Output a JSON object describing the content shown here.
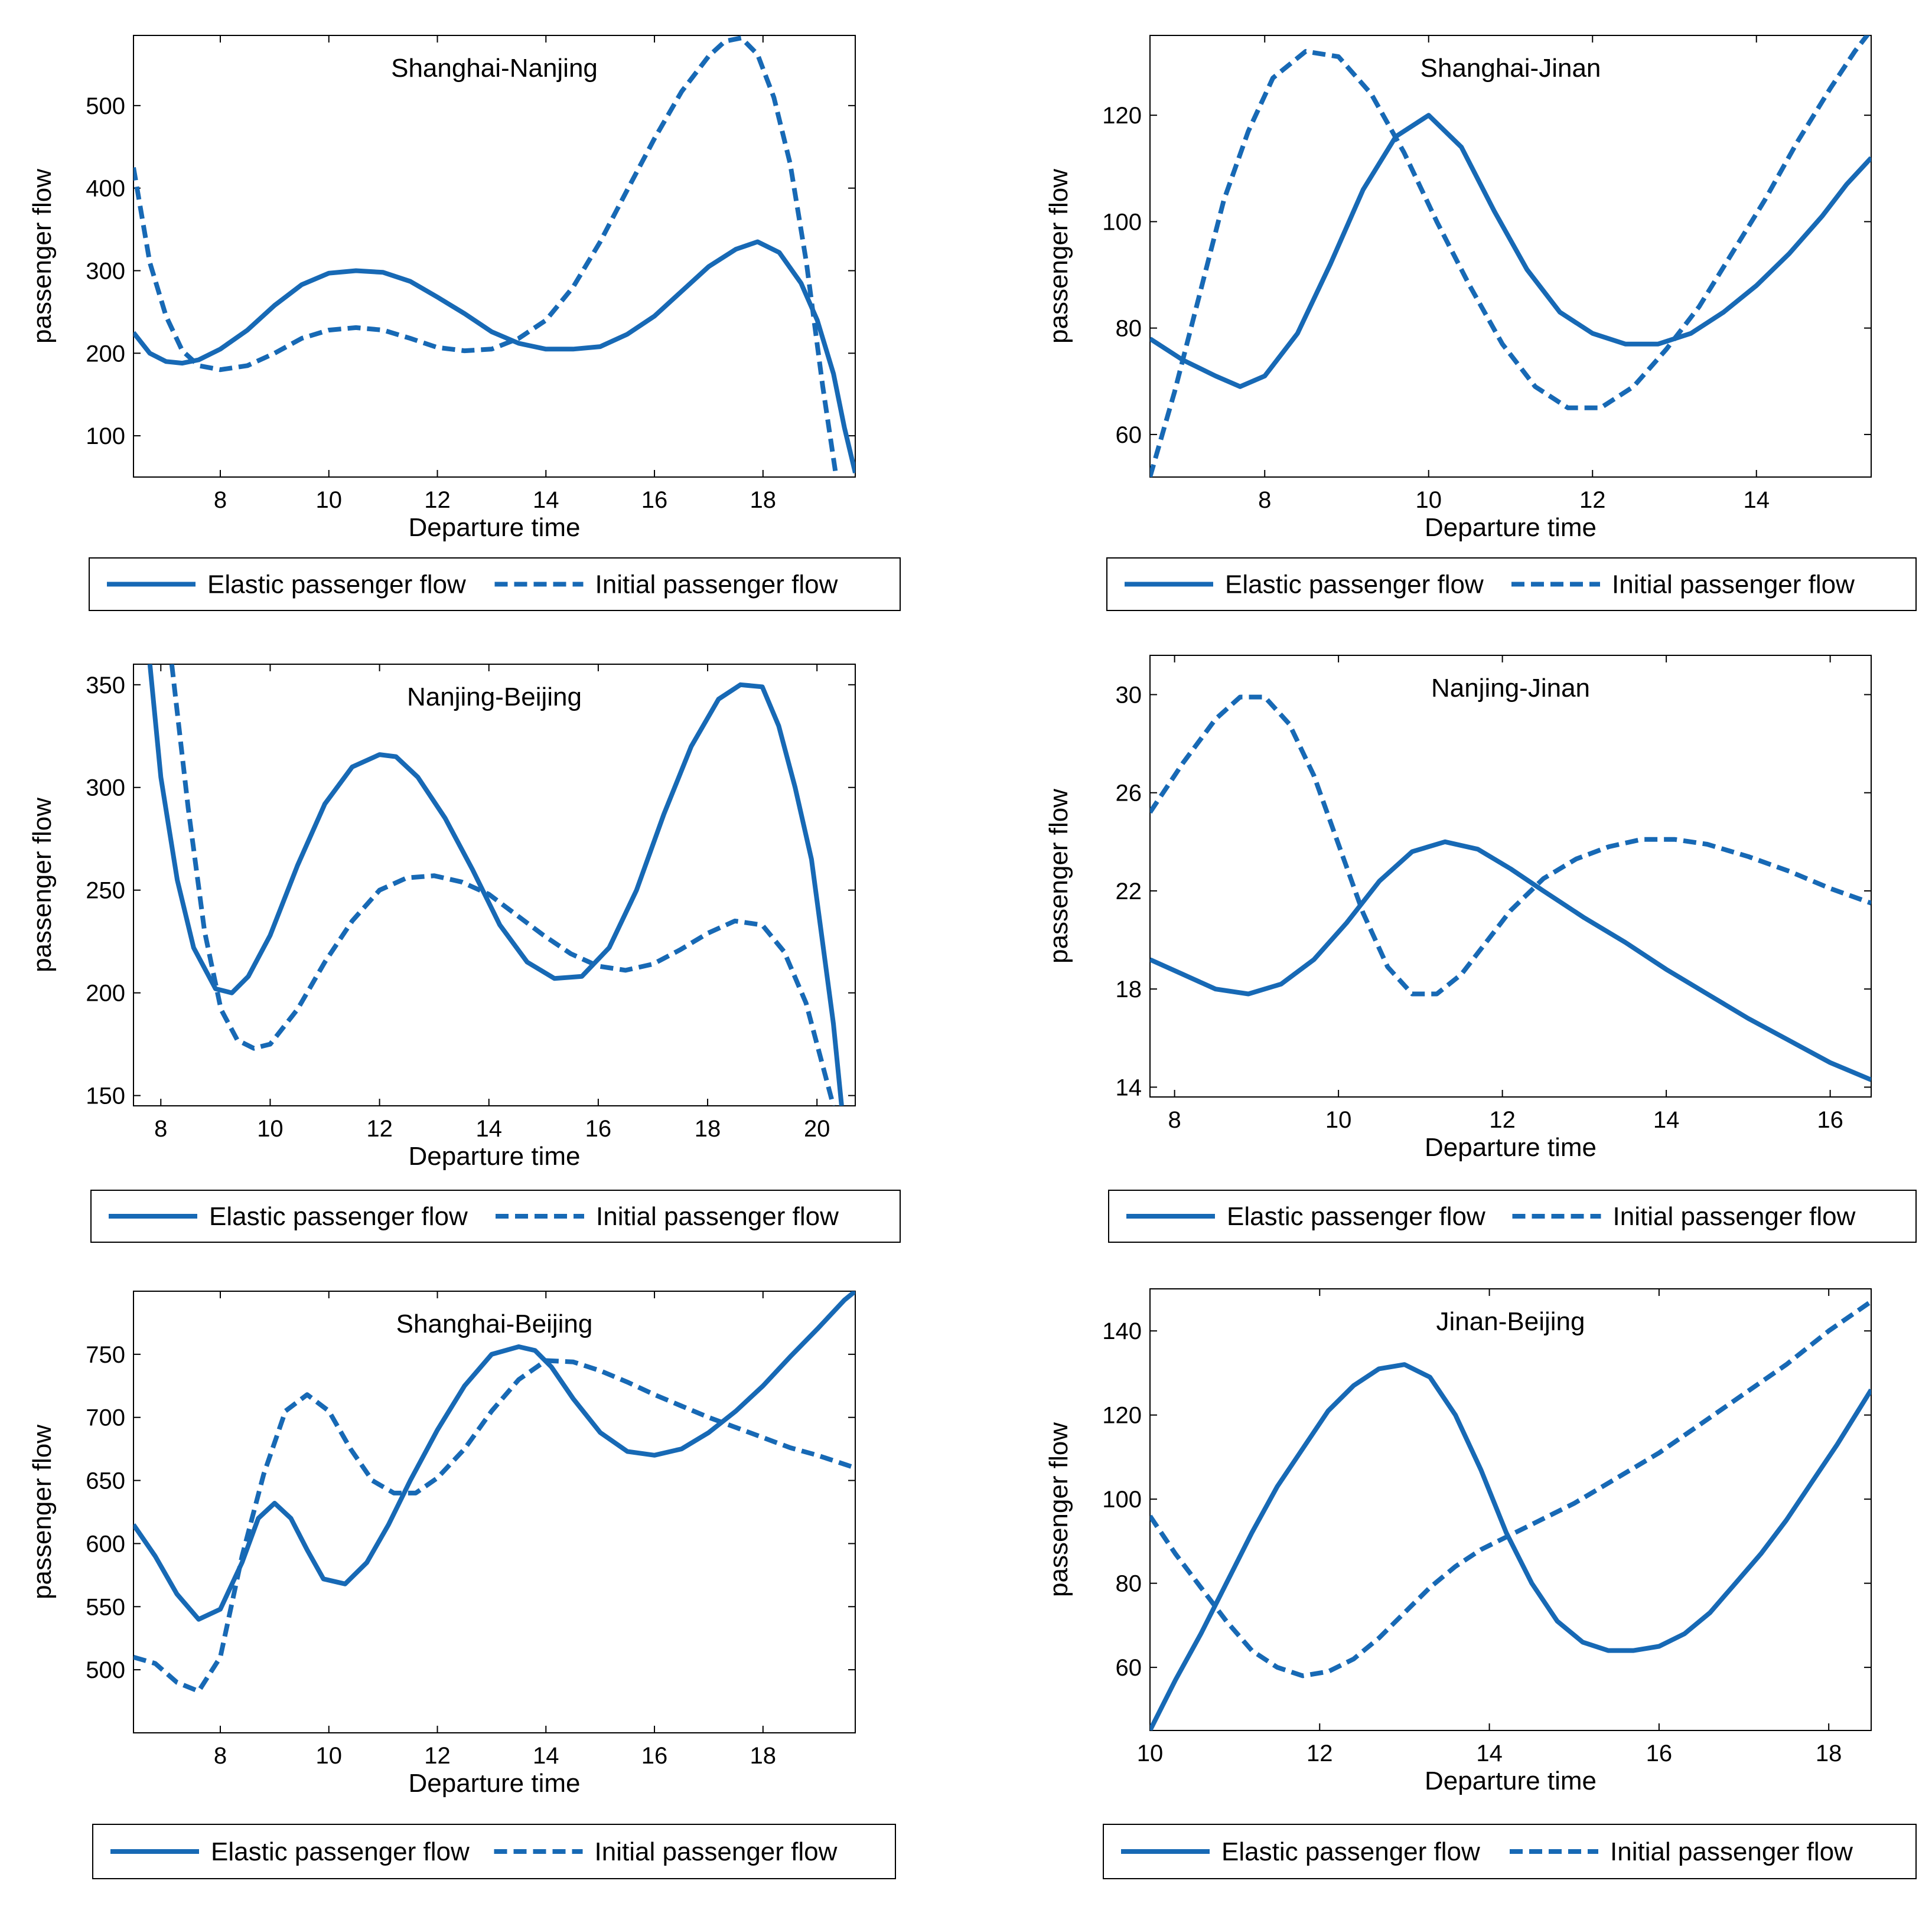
{
  "figure": {
    "line_color": "#1769b5"
  },
  "chart_data": [
    {
      "type": "line",
      "title": "Shanghai-Nanjing",
      "xlabel": "Departure time",
      "ylabel": "passenger flow",
      "xlim": [
        6.4,
        19.7
      ],
      "ylim": [
        50,
        585
      ],
      "xticks": [
        8,
        10,
        12,
        14,
        16,
        18
      ],
      "yticks": [
        100,
        200,
        300,
        400,
        500
      ],
      "legend": [
        "Elastic passenger flow",
        "Initial passenger flow"
      ],
      "series": [
        {
          "name": "Elastic passenger flow",
          "style": "solid",
          "x": [
            6.4,
            6.7,
            7.0,
            7.3,
            7.6,
            8.0,
            8.5,
            9.0,
            9.5,
            10.0,
            10.5,
            11.0,
            11.5,
            12.0,
            12.5,
            13.0,
            13.5,
            14.0,
            14.5,
            15.0,
            15.5,
            16.0,
            16.5,
            17.0,
            17.5,
            17.9,
            18.3,
            18.7,
            19.0,
            19.3,
            19.5,
            19.7
          ],
          "y": [
            225,
            200,
            190,
            188,
            192,
            205,
            228,
            258,
            283,
            297,
            300,
            298,
            287,
            268,
            248,
            226,
            212,
            205,
            205,
            208,
            223,
            245,
            275,
            305,
            326,
            335,
            322,
            285,
            240,
            175,
            110,
            55
          ]
        },
        {
          "name": "Initial passenger flow",
          "style": "dashed",
          "x": [
            6.4,
            6.7,
            7.0,
            7.3,
            7.6,
            8.0,
            8.5,
            9.0,
            9.5,
            10.0,
            10.5,
            11.0,
            11.5,
            12.0,
            12.5,
            13.0,
            13.5,
            14.0,
            14.5,
            15.0,
            15.5,
            16.0,
            16.5,
            17.0,
            17.3,
            17.6,
            17.9,
            18.2,
            18.5,
            18.8,
            19.1,
            19.35
          ],
          "y": [
            425,
            310,
            245,
            203,
            185,
            180,
            185,
            200,
            218,
            228,
            231,
            228,
            218,
            207,
            203,
            205,
            218,
            240,
            280,
            335,
            398,
            460,
            517,
            560,
            578,
            582,
            562,
            510,
            430,
            310,
            160,
            50
          ]
        }
      ]
    },
    {
      "type": "line",
      "title": "Shanghai-Jinan",
      "xlabel": "Departure time",
      "ylabel": "passenger flow",
      "xlim": [
        6.6,
        15.4
      ],
      "ylim": [
        52,
        135
      ],
      "xticks": [
        8,
        10,
        12,
        14
      ],
      "yticks": [
        60,
        80,
        100,
        120
      ],
      "legend": [
        "Elastic passenger flow",
        "Initial passenger flow"
      ],
      "series": [
        {
          "name": "Elastic passenger flow",
          "style": "solid",
          "x": [
            6.6,
            7.0,
            7.4,
            7.7,
            8.0,
            8.4,
            8.8,
            9.2,
            9.6,
            10.0,
            10.4,
            10.8,
            11.2,
            11.6,
            12.0,
            12.4,
            12.8,
            13.2,
            13.6,
            14.0,
            14.4,
            14.8,
            15.1,
            15.4
          ],
          "y": [
            78,
            74,
            71,
            69,
            71,
            79,
            92,
            106,
            116,
            120,
            114,
            102,
            91,
            83,
            79,
            77,
            77,
            79,
            83,
            88,
            94,
            101,
            107,
            112
          ]
        },
        {
          "name": "Initial passenger flow",
          "style": "dashed",
          "x": [
            6.6,
            6.9,
            7.2,
            7.5,
            7.8,
            8.1,
            8.5,
            8.9,
            9.3,
            9.7,
            10.1,
            10.5,
            10.9,
            11.3,
            11.7,
            12.1,
            12.5,
            12.9,
            13.3,
            13.7,
            14.1,
            14.5,
            14.9,
            15.2,
            15.4
          ],
          "y": [
            52,
            68,
            86,
            104,
            117,
            127,
            132,
            131,
            124,
            113,
            100,
            88,
            77,
            69,
            65,
            65,
            69,
            76,
            84,
            94,
            104,
            115,
            125,
            132,
            136
          ]
        }
      ]
    },
    {
      "type": "line",
      "title": "Nanjing-Beijing",
      "xlabel": "Departure time",
      "ylabel": "passenger flow",
      "xlim": [
        7.5,
        20.7
      ],
      "ylim": [
        145,
        360
      ],
      "xticks": [
        8,
        10,
        12,
        14,
        16,
        18,
        20
      ],
      "yticks": [
        150,
        200,
        250,
        300,
        350
      ],
      "legend": [
        "Elastic passenger flow",
        "Initial passenger flow"
      ],
      "series": [
        {
          "name": "Elastic passenger flow",
          "style": "solid",
          "x": [
            7.8,
            8.0,
            8.3,
            8.6,
            9.0,
            9.3,
            9.6,
            10.0,
            10.5,
            11.0,
            11.5,
            12.0,
            12.3,
            12.7,
            13.2,
            13.7,
            14.2,
            14.7,
            15.2,
            15.7,
            16.2,
            16.7,
            17.2,
            17.7,
            18.2,
            18.6,
            19.0,
            19.3,
            19.6,
            19.9,
            20.1,
            20.3,
            20.45
          ],
          "y": [
            360,
            305,
            255,
            222,
            202,
            200,
            208,
            228,
            262,
            292,
            310,
            316,
            315,
            305,
            285,
            260,
            233,
            215,
            207,
            208,
            222,
            250,
            287,
            320,
            343,
            350,
            349,
            330,
            300,
            265,
            225,
            185,
            145
          ]
        },
        {
          "name": "Initial passenger flow",
          "style": "dashed",
          "x": [
            8.2,
            8.5,
            8.8,
            9.1,
            9.4,
            9.7,
            10.0,
            10.5,
            11.0,
            11.5,
            12.0,
            12.5,
            13.0,
            13.5,
            14.0,
            14.5,
            15.0,
            15.5,
            16.0,
            16.5,
            17.0,
            17.5,
            18.0,
            18.5,
            19.0,
            19.4,
            19.8,
            20.1,
            20.3
          ],
          "y": [
            360,
            290,
            230,
            192,
            177,
            173,
            175,
            192,
            215,
            235,
            250,
            256,
            257,
            254,
            248,
            238,
            228,
            219,
            213,
            211,
            214,
            221,
            229,
            235,
            233,
            220,
            195,
            165,
            145
          ]
        }
      ]
    },
    {
      "type": "line",
      "title": "Nanjing-Jinan",
      "xlabel": "Departure time",
      "ylabel": "passenger flow",
      "xlim": [
        7.7,
        16.5
      ],
      "ylim": [
        13.6,
        31.6
      ],
      "xticks": [
        8,
        10,
        12,
        14,
        16
      ],
      "yticks": [
        14,
        18,
        22,
        26,
        30
      ],
      "legend": [
        "Elastic passenger flow",
        "Initial passenger flow"
      ],
      "series": [
        {
          "name": "Elastic passenger flow",
          "style": "solid",
          "x": [
            7.7,
            8.1,
            8.5,
            8.9,
            9.3,
            9.7,
            10.1,
            10.5,
            10.9,
            11.3,
            11.7,
            12.1,
            12.5,
            13.0,
            13.5,
            14.0,
            14.5,
            15.0,
            15.5,
            16.0,
            16.5
          ],
          "y": [
            19.2,
            18.6,
            18.0,
            17.8,
            18.2,
            19.2,
            20.7,
            22.4,
            23.6,
            24.0,
            23.7,
            22.9,
            22.0,
            20.9,
            19.9,
            18.8,
            17.8,
            16.8,
            15.9,
            15.0,
            14.3
          ]
        },
        {
          "name": "Initial passenger flow",
          "style": "dashed",
          "x": [
            7.7,
            8.1,
            8.5,
            8.8,
            9.1,
            9.4,
            9.7,
            10.0,
            10.3,
            10.6,
            10.9,
            11.2,
            11.5,
            11.8,
            12.1,
            12.5,
            12.9,
            13.3,
            13.7,
            14.1,
            14.5,
            15.0,
            15.5,
            16.0,
            16.5
          ],
          "y": [
            25.2,
            27.2,
            29.0,
            29.9,
            29.9,
            28.8,
            26.7,
            23.9,
            21.1,
            18.9,
            17.8,
            17.8,
            18.6,
            19.9,
            21.2,
            22.5,
            23.3,
            23.8,
            24.1,
            24.1,
            23.9,
            23.4,
            22.8,
            22.1,
            21.5
          ]
        }
      ]
    },
    {
      "type": "line",
      "title": "Shanghai-Beijing",
      "xlabel": "Departure time",
      "ylabel": "passenger flow",
      "xlim": [
        6.4,
        19.7
      ],
      "ylim": [
        450,
        800
      ],
      "xticks": [
        8,
        10,
        12,
        14,
        16,
        18
      ],
      "yticks": [
        500,
        550,
        600,
        650,
        700,
        750
      ],
      "legend": [
        "Elastic passenger flow",
        "Initial passenger flow"
      ],
      "series": [
        {
          "name": "Elastic passenger flow",
          "style": "solid",
          "x": [
            6.4,
            6.8,
            7.2,
            7.6,
            8.0,
            8.4,
            8.7,
            9.0,
            9.3,
            9.6,
            9.9,
            10.3,
            10.7,
            11.1,
            11.5,
            12.0,
            12.5,
            13.0,
            13.5,
            13.8,
            14.1,
            14.5,
            15.0,
            15.5,
            16.0,
            16.5,
            17.0,
            17.5,
            18.0,
            18.5,
            19.0,
            19.5,
            19.7
          ],
          "y": [
            615,
            590,
            560,
            540,
            548,
            585,
            620,
            632,
            620,
            595,
            572,
            568,
            585,
            615,
            650,
            690,
            725,
            750,
            756,
            753,
            740,
            715,
            688,
            673,
            670,
            675,
            688,
            705,
            725,
            748,
            770,
            793,
            800
          ]
        },
        {
          "name": "Initial passenger flow",
          "style": "dashed",
          "x": [
            6.4,
            6.8,
            7.2,
            7.6,
            8.0,
            8.4,
            8.8,
            9.2,
            9.6,
            10.0,
            10.4,
            10.8,
            11.2,
            11.6,
            12.0,
            12.5,
            13.0,
            13.5,
            14.0,
            14.5,
            15.0,
            15.5,
            16.0,
            16.5,
            17.0,
            17.5,
            18.0,
            18.5,
            19.0,
            19.7
          ],
          "y": [
            510,
            505,
            490,
            483,
            510,
            590,
            655,
            705,
            718,
            705,
            675,
            650,
            640,
            640,
            652,
            675,
            705,
            730,
            745,
            744,
            737,
            728,
            718,
            709,
            700,
            692,
            684,
            676,
            670,
            660
          ]
        }
      ]
    },
    {
      "type": "line",
      "title": "Jinan-Beijing",
      "xlabel": "Departure time",
      "ylabel": "passenger flow",
      "xlim": [
        10,
        18.5
      ],
      "ylim": [
        45,
        150
      ],
      "xticks": [
        10,
        12,
        14,
        16,
        18
      ],
      "yticks": [
        60,
        80,
        100,
        120,
        140
      ],
      "legend": [
        "Elastic passenger flow",
        "Initial passenger flow"
      ],
      "series": [
        {
          "name": "Elastic passenger flow",
          "style": "solid",
          "x": [
            10.0,
            10.3,
            10.6,
            10.9,
            11.2,
            11.5,
            11.8,
            12.1,
            12.4,
            12.7,
            13.0,
            13.3,
            13.6,
            13.9,
            14.2,
            14.5,
            14.8,
            15.1,
            15.4,
            15.7,
            16.0,
            16.3,
            16.6,
            16.9,
            17.2,
            17.5,
            17.8,
            18.1,
            18.5
          ],
          "y": [
            45,
            57,
            68,
            80,
            92,
            103,
            112,
            121,
            127,
            131,
            132,
            129,
            120,
            107,
            92,
            80,
            71,
            66,
            64,
            64,
            65,
            68,
            73,
            80,
            87,
            95,
            104,
            113,
            126
          ]
        },
        {
          "name": "Initial passenger flow",
          "style": "dashed",
          "x": [
            10.0,
            10.3,
            10.6,
            10.9,
            11.2,
            11.5,
            11.8,
            12.1,
            12.4,
            12.7,
            13.0,
            13.3,
            13.6,
            13.9,
            14.2,
            14.6,
            15.0,
            15.5,
            16.0,
            16.5,
            17.0,
            17.5,
            18.0,
            18.5
          ],
          "y": [
            96,
            87,
            79,
            71,
            64,
            60,
            58,
            59,
            62,
            67,
            73,
            79,
            84,
            88,
            91,
            95,
            99,
            105,
            111,
            118,
            125,
            132,
            140,
            147
          ]
        }
      ]
    }
  ]
}
